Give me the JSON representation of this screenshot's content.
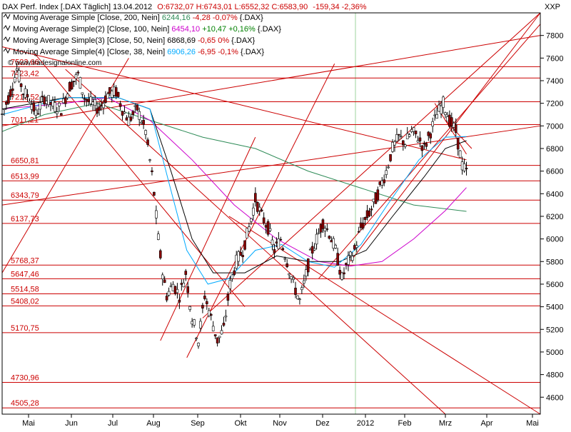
{
  "header": {
    "title": "DAX Perf. Index [.DAX Täglich] 13.04.2012",
    "ohlc": "O:6732,07 H:6743,01 L:6552,32 C:6583,90",
    "change": "-159,34 -2,36%"
  },
  "legend": [
    {
      "name": "Moving Average Simple [Close, 200, Nein]",
      "value": "6244,16",
      "diff": "-4,28 -0,07%",
      "suffix": "{.DAX}",
      "color": "#2e8b57",
      "diff_color": "#cc0000"
    },
    {
      "name": "Moving Average Simple(2) [Close, 100, Nein]",
      "value": "6454,10",
      "diff": "+10,47 +0,16%",
      "suffix": "{.DAX}",
      "color": "#cc00cc",
      "diff_color": "#008000"
    },
    {
      "name": "Moving Average Simple(3) [Close, 50, Nein]",
      "value": "6868,69",
      "diff": "-0,65 0%",
      "suffix": "{.DAX}",
      "color": "#000000",
      "diff_color": "#cc0000"
    },
    {
      "name": "Moving Average Simple(4) [Close, 38, Nein]",
      "value": "6906,26",
      "diff": "-6,95 -0,1%",
      "suffix": "{.DAX}",
      "color": "#00aaff",
      "diff_color": "#cc0000"
    }
  ],
  "watermark": "© www.tradesignalonline.com",
  "axis_unit": "XXP",
  "chart_data": {
    "type": "candlestick",
    "title": "DAX Perf. Index [.DAX Täglich]",
    "ylim": [
      4450,
      8000
    ],
    "y_ticks": [
      4600,
      4800,
      5000,
      5200,
      5400,
      5600,
      5800,
      6000,
      6200,
      6400,
      6600,
      6800,
      7000,
      7200,
      7400,
      7600,
      7800
    ],
    "x_labels": [
      "Mai",
      "Jun",
      "Jul",
      "Aug",
      "Sep",
      "Okt",
      "Nov",
      "Dez",
      "2012",
      "Feb",
      "Mrz",
      "Apr",
      "Mai"
    ],
    "levels": [
      7523.66,
      7423.42,
      7213.52,
      7011.21,
      6650.81,
      6513.99,
      6343.79,
      6137.73,
      5768.37,
      5647.46,
      5514.58,
      5408.02,
      5170.75,
      4730.96,
      4505.28
    ],
    "level_labels": [
      "7523,66",
      "7423,42",
      "7213,52",
      "7011,21",
      "6650,81",
      "6513,99",
      "6343,79",
      "6137,73",
      "5768,37",
      "5647,46",
      "5514,58",
      "5408,02",
      "5170,75",
      "4730,96",
      "4505,28"
    ],
    "price_path": [
      [
        0,
        7100
      ],
      [
        8,
        7300
      ],
      [
        14,
        7500
      ],
      [
        20,
        7300
      ],
      [
        26,
        7250
      ],
      [
        32,
        7100
      ],
      [
        40,
        7250
      ],
      [
        48,
        7180
      ],
      [
        56,
        7150
      ],
      [
        64,
        7350
      ],
      [
        72,
        7450
      ],
      [
        78,
        7250
      ],
      [
        84,
        7200
      ],
      [
        92,
        7150
      ],
      [
        100,
        7280
      ],
      [
        108,
        7300
      ],
      [
        114,
        7150
      ],
      [
        120,
        7050
      ],
      [
        128,
        7150
      ],
      [
        136,
        6950
      ],
      [
        143,
        6500
      ],
      [
        148,
        6000
      ],
      [
        152,
        5700
      ],
      [
        156,
        5500
      ],
      [
        162,
        5600
      ],
      [
        168,
        5500
      ],
      [
        174,
        5700
      ],
      [
        180,
        5300
      ],
      [
        186,
        5100
      ],
      [
        192,
        5500
      ],
      [
        198,
        5300
      ],
      [
        204,
        5100
      ],
      [
        210,
        5200
      ],
      [
        216,
        5600
      ],
      [
        222,
        5800
      ],
      [
        228,
        5900
      ],
      [
        234,
        6100
      ],
      [
        240,
        6350
      ],
      [
        246,
        6200
      ],
      [
        252,
        6100
      ],
      [
        258,
        5900
      ],
      [
        264,
        6000
      ],
      [
        270,
        5800
      ],
      [
        276,
        5600
      ],
      [
        282,
        5450
      ],
      [
        286,
        5600
      ],
      [
        292,
        5850
      ],
      [
        298,
        6000
      ],
      [
        304,
        6150
      ],
      [
        310,
        6050
      ],
      [
        316,
        5900
      ],
      [
        322,
        5650
      ],
      [
        328,
        5800
      ],
      [
        334,
        5900
      ],
      [
        340,
        6100
      ],
      [
        346,
        6200
      ],
      [
        352,
        6300
      ],
      [
        358,
        6450
      ],
      [
        364,
        6600
      ],
      [
        370,
        6800
      ],
      [
        376,
        6900
      ],
      [
        382,
        6850
      ],
      [
        388,
        6950
      ],
      [
        394,
        6900
      ],
      [
        400,
        6800
      ],
      [
        406,
        6950
      ],
      [
        412,
        7100
      ],
      [
        418,
        7200
      ],
      [
        424,
        7050
      ],
      [
        430,
        6950
      ],
      [
        436,
        6650
      ],
      [
        440,
        6590
      ]
    ],
    "moving_averages": [
      {
        "name": "Moving Average Simple [Close, 200, Nein]",
        "color": "#2e8b57",
        "points": [
          [
            0,
            6950
          ],
          [
            40,
            7100
          ],
          [
            90,
            7200
          ],
          [
            140,
            7050
          ],
          [
            190,
            6900
          ],
          [
            240,
            6800
          ],
          [
            290,
            6600
          ],
          [
            340,
            6450
          ],
          [
            390,
            6300
          ],
          [
            440,
            6244
          ]
        ]
      },
      {
        "name": "Moving Average Simple(2) [Close, 100, Nein]",
        "color": "#cc00cc",
        "points": [
          [
            0,
            7150
          ],
          [
            60,
            7200
          ],
          [
            100,
            7250
          ],
          [
            140,
            7050
          ],
          [
            180,
            6700
          ],
          [
            220,
            6300
          ],
          [
            260,
            6000
          ],
          [
            300,
            5800
          ],
          [
            330,
            5760
          ],
          [
            360,
            5800
          ],
          [
            390,
            6000
          ],
          [
            420,
            6250
          ],
          [
            440,
            6454
          ]
        ]
      },
      {
        "name": "Moving Average Simple(3) [Close, 50, Nein]",
        "color": "#000000",
        "points": [
          [
            0,
            7150
          ],
          [
            60,
            7250
          ],
          [
            110,
            7250
          ],
          [
            140,
            7150
          ],
          [
            160,
            6600
          ],
          [
            180,
            6000
          ],
          [
            200,
            5700
          ],
          [
            230,
            5700
          ],
          [
            260,
            5850
          ],
          [
            290,
            5800
          ],
          [
            320,
            5800
          ],
          [
            345,
            5900
          ],
          [
            370,
            6200
          ],
          [
            400,
            6550
          ],
          [
            420,
            6800
          ],
          [
            440,
            6869
          ]
        ]
      },
      {
        "name": "Moving Average Simple(4) [Close, 38, Nein]",
        "color": "#00aaff",
        "points": [
          [
            0,
            7100
          ],
          [
            60,
            7250
          ],
          [
            110,
            7250
          ],
          [
            140,
            7150
          ],
          [
            158,
            6500
          ],
          [
            175,
            5900
          ],
          [
            195,
            5600
          ],
          [
            215,
            5650
          ],
          [
            240,
            5900
          ],
          [
            265,
            5950
          ],
          [
            290,
            5800
          ],
          [
            315,
            5750
          ],
          [
            340,
            5950
          ],
          [
            365,
            6300
          ],
          [
            395,
            6700
          ],
          [
            420,
            6900
          ],
          [
            440,
            6906
          ]
        ]
      }
    ],
    "trendlines": [
      [
        [
          0,
          7700
        ],
        [
          440,
          6700
        ]
      ],
      [
        [
          0,
          7000
        ],
        [
          510,
          7800
        ]
      ],
      [
        [
          0,
          6300
        ],
        [
          510,
          7000
        ]
      ],
      [
        [
          0,
          5700
        ],
        [
          120,
          7600
        ]
      ],
      [
        [
          30,
          7650
        ],
        [
          230,
          5400
        ]
      ],
      [
        [
          60,
          7500
        ],
        [
          420,
          4450
        ]
      ],
      [
        [
          150,
          5100
        ],
        [
          240,
          6900
        ]
      ],
      [
        [
          175,
          4950
        ],
        [
          315,
          7550
        ]
      ],
      [
        [
          190,
          5300
        ],
        [
          510,
          8000
        ]
      ],
      [
        [
          215,
          6200
        ],
        [
          510,
          4450
        ]
      ],
      [
        [
          300,
          5650
        ],
        [
          510,
          7900
        ]
      ],
      [
        [
          330,
          5800
        ],
        [
          510,
          8000
        ]
      ],
      [
        [
          410,
          7200
        ],
        [
          440,
          6750
        ]
      ],
      [
        [
          420,
          7050
        ],
        [
          445,
          6800
        ]
      ]
    ]
  }
}
